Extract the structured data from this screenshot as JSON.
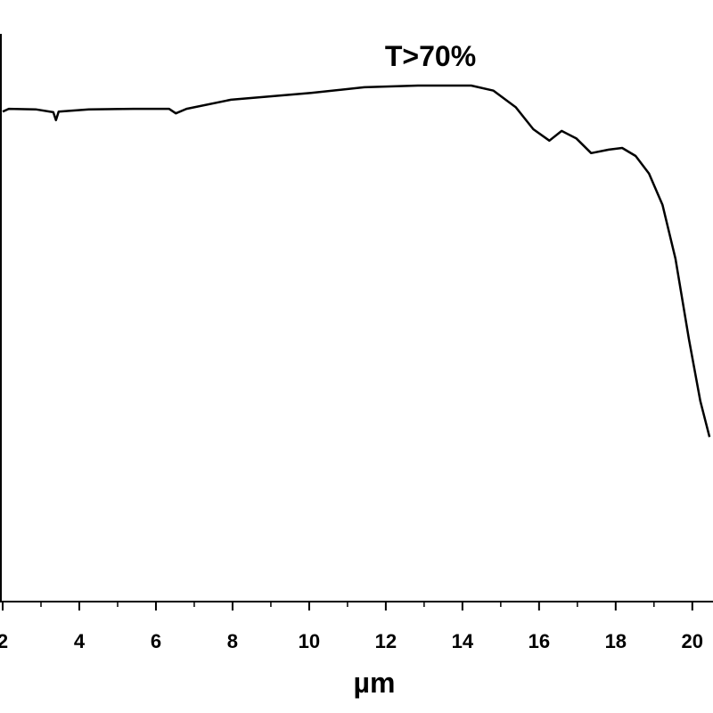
{
  "chart_data": {
    "type": "line",
    "annotation": "T>70%",
    "xlabel": "µm",
    "x": [
      2.0,
      2.16,
      2.86,
      3.32,
      3.39,
      3.46,
      4.25,
      5.41,
      6.34,
      6.52,
      6.8,
      7.96,
      10.05,
      11.44,
      12.84,
      14.23,
      14.81,
      15.39,
      15.85,
      16.27,
      16.59,
      16.97,
      17.36,
      17.82,
      18.17,
      18.52,
      18.87,
      19.22,
      19.56,
      19.91,
      20.21,
      20.45
    ],
    "values": [
      86.3,
      86.8,
      86.7,
      86.2,
      84.8,
      86.3,
      86.7,
      86.8,
      86.8,
      86.0,
      86.8,
      88.4,
      89.6,
      90.6,
      90.9,
      90.9,
      90.0,
      87.1,
      83.2,
      81.2,
      82.9,
      81.6,
      79.0,
      79.6,
      79.9,
      78.5,
      75.4,
      69.9,
      60.4,
      46.3,
      35.3,
      29.0
    ],
    "color": "#000000",
    "xlim": [
      1.93,
      20.54
    ],
    "xticks": [
      2,
      4,
      6,
      8,
      10,
      12,
      14,
      16,
      18,
      20
    ],
    "xminorticks": [
      3,
      5,
      7,
      9,
      11,
      13,
      15,
      17,
      19
    ],
    "ylim": [
      0,
      100
    ]
  }
}
